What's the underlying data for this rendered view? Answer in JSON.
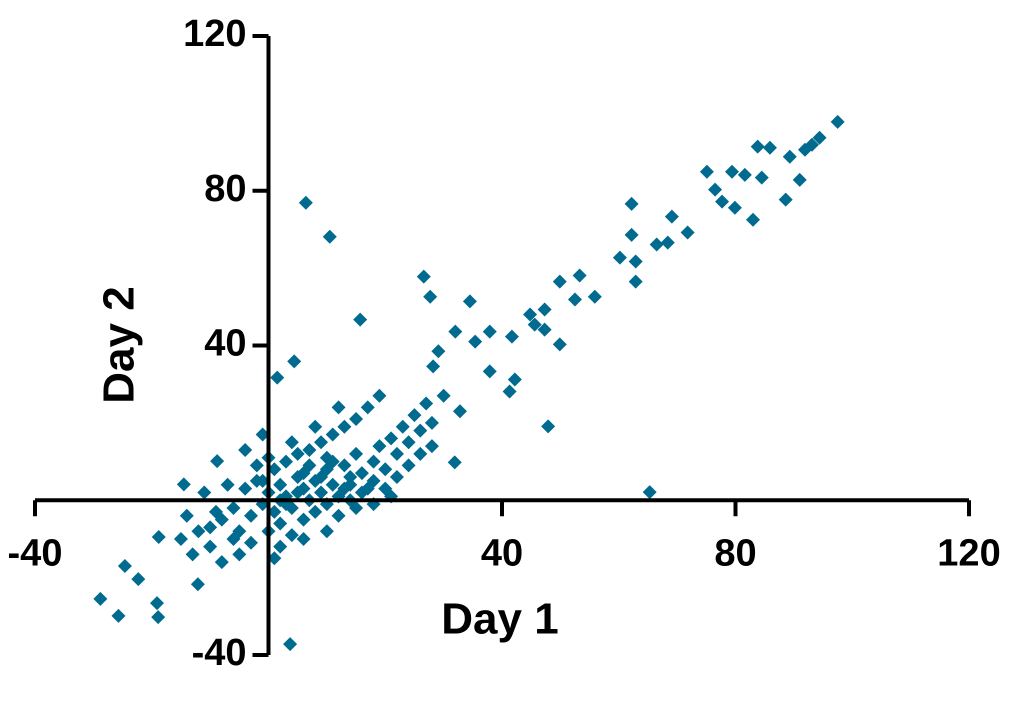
{
  "chart_data": {
    "type": "scatter",
    "x_label": "Day 1",
    "y_label": "Day 2",
    "color": "#006b8f",
    "xlim": [
      -40,
      120
    ],
    "ylim": [
      -40,
      120
    ],
    "xticks": [
      -40,
      40,
      80,
      120
    ],
    "yticks": [
      -40,
      40,
      80,
      120
    ],
    "grid": false,
    "x": [
      97.5,
      94.4,
      93.1,
      91.9,
      89.3,
      85.9,
      83.8,
      84.5,
      81.6,
      79.4,
      75.1,
      76.5,
      77.7,
      79.9,
      83,
      88.6,
      91,
      69.1,
      71.8,
      68.4,
      66.5,
      62.2,
      62.2,
      60.2,
      62.9,
      62.9,
      55.9,
      53.3,
      49.9,
      47.3,
      52.5,
      45.6,
      49.9,
      47.3,
      44.8,
      41.7,
      41.3,
      42.2,
      47.9,
      65.3,
      6.4,
      10.5,
      26.6,
      27.7,
      34.5,
      15.7,
      37.9,
      35.4,
      32,
      29.1,
      28.2,
      37.9,
      4.4,
      1.5,
      32.8,
      31.9,
      3.7,
      -28.8,
      -25.7,
      -18.9,
      -19.1,
      -24.6,
      -22.3,
      -18.8,
      -14.5,
      -8.8,
      -12.1,
      -15,
      -12,
      -10,
      -8,
      -6,
      -5,
      -4,
      -3,
      -2,
      -1,
      0,
      1,
      2,
      3,
      4,
      5,
      6,
      7,
      8,
      9,
      10,
      11,
      12,
      13,
      14,
      15,
      16,
      17,
      18,
      19,
      20,
      21,
      22,
      23,
      24,
      25,
      26,
      27,
      28,
      30,
      -7,
      -9,
      -11,
      -13,
      -14,
      -6,
      -3,
      0,
      2,
      4,
      6,
      8,
      10,
      12,
      14,
      16,
      18,
      20,
      22,
      1,
      3,
      5,
      7,
      9,
      11,
      13,
      15,
      17,
      19,
      0,
      -2,
      4,
      8,
      12,
      6,
      10,
      3,
      -1,
      2,
      5,
      7,
      9,
      11,
      13,
      15,
      -5,
      -8,
      -10,
      24,
      26,
      28,
      2,
      6,
      10,
      14,
      18,
      21,
      -4,
      -1,
      1
    ],
    "values": [
      97.8,
      93.7,
      91.9,
      90.6,
      88.8,
      91.1,
      91.4,
      83.4,
      84.1,
      84.9,
      84.9,
      80.3,
      77.2,
      75.6,
      72.5,
      77.7,
      82.8,
      73.3,
      69.2,
      66.6,
      66.1,
      76.6,
      68.6,
      62.7,
      61.7,
      56.5,
      52.6,
      58.1,
      56.5,
      49.3,
      51.9,
      45.4,
      40.3,
      44.1,
      48,
      42.3,
      28.1,
      31.2,
      19.1,
      2.1,
      76.9,
      68.1,
      57.8,
      52.6,
      51.4,
      46.7,
      43.6,
      41,
      43.6,
      38.5,
      34.6,
      33.3,
      35.9,
      31.7,
      23,
      9.8,
      -37.2,
      -25.5,
      -29.9,
      -30.2,
      -26.6,
      -17,
      -20.4,
      -9.5,
      4.1,
      10.1,
      -21.7,
      -10,
      -8,
      -12,
      -5,
      -2,
      -8,
      3,
      -4,
      5,
      -1,
      2,
      -3,
      4,
      1,
      -2,
      6,
      3,
      0,
      5,
      2,
      8,
      4,
      1,
      9,
      6,
      12,
      7,
      3,
      10,
      14,
      8,
      16,
      12,
      19,
      15,
      22,
      18,
      25,
      20,
      27,
      4,
      -3,
      2,
      -14,
      -4,
      -10,
      -11,
      -8,
      -6,
      -9,
      -5,
      -3,
      -1,
      -4,
      0,
      2,
      5,
      3,
      6,
      8,
      10,
      12,
      13,
      15,
      17,
      19,
      21,
      24,
      27,
      11,
      9,
      15,
      19,
      24,
      7,
      11,
      -1,
      5,
      0,
      2,
      9,
      6,
      10,
      3,
      -2,
      -14,
      -16,
      -7,
      9,
      12,
      14,
      -12,
      -10,
      -8,
      4,
      -1,
      1,
      13,
      17,
      -15
    ]
  }
}
